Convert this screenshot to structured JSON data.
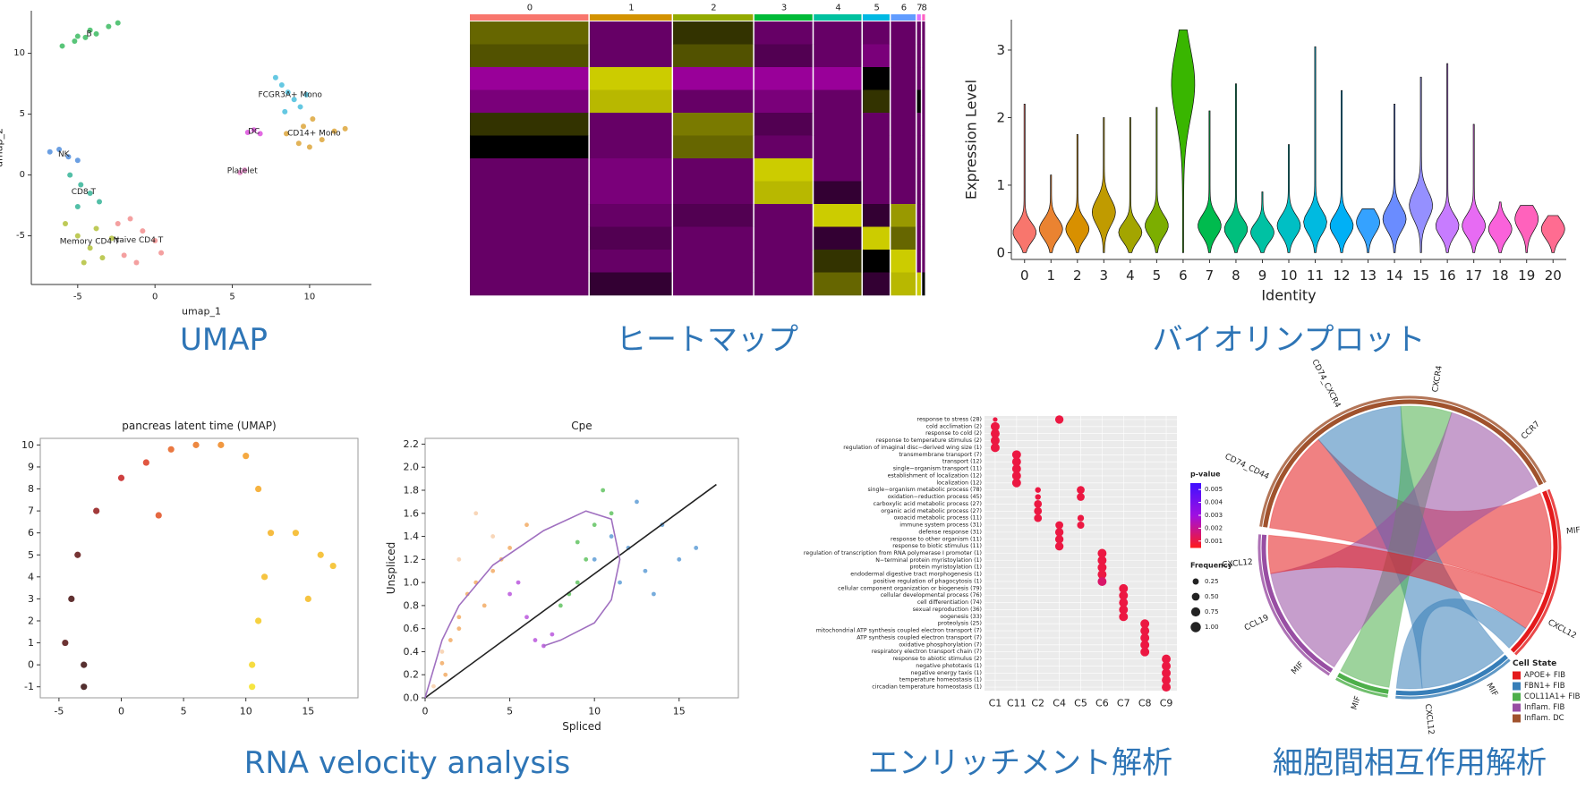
{
  "captions": [
    "UMAP",
    "ヒートマップ",
    "バイオリンプロット",
    "RNA velocity analysis",
    "エンリッチメント解析",
    "細胞間相互作用解析"
  ],
  "chart_data": [
    {
      "type": "scatter",
      "xlabel": "umap_1",
      "ylabel": "umap_2",
      "xlim": [
        -8,
        14
      ],
      "ylim": [
        -9,
        13.5
      ],
      "xticks": [
        -5,
        0,
        5,
        10
      ],
      "yticks": [
        -5,
        0,
        5,
        10
      ],
      "labels_on_points": true,
      "series": [
        {
          "name": "B",
          "color": "#22b14c",
          "x": [
            -6,
            -5.2,
            -4.5,
            -3.8,
            -3,
            -2.4,
            -4.2,
            -5
          ],
          "y": [
            10.6,
            11,
            11.3,
            11.6,
            12.2,
            12.5,
            11.9,
            11.4
          ]
        },
        {
          "name": "FCGR3A+ Mono",
          "color": "#31b5d8",
          "x": [
            7.8,
            8.2,
            8.6,
            9,
            9.4,
            8.4,
            9.8
          ],
          "y": [
            8,
            7.4,
            6.8,
            6.2,
            5.6,
            5.2,
            6.6
          ]
        },
        {
          "name": "DC",
          "color": "#d838d8",
          "x": [
            6,
            6.4,
            6.8
          ],
          "y": [
            3.5,
            3.7,
            3.4
          ]
        },
        {
          "name": "CD14+ Mono",
          "color": "#d89a20",
          "x": [
            8.5,
            9.3,
            10,
            10.8,
            11.6,
            12.3,
            10.2,
            9.6
          ],
          "y": [
            3.4,
            2.6,
            2.3,
            2.9,
            3.6,
            3.8,
            4.6,
            4
          ]
        },
        {
          "name": "Platelet",
          "color": "#e377c2",
          "x": [
            5.5,
            5.8
          ],
          "y": [
            0.2,
            0.4
          ]
        },
        {
          "name": "NK",
          "color": "#3a7fd8",
          "x": [
            -6.8,
            -6.2,
            -5.6,
            -5
          ],
          "y": [
            1.9,
            2.1,
            1.5,
            1.2
          ]
        },
        {
          "name": "CD8 T",
          "color": "#1aaa8a",
          "x": [
            -5.5,
            -4.8,
            -4.2,
            -3.6,
            -5
          ],
          "y": [
            0,
            -0.8,
            -1.5,
            -2.2,
            -2.6
          ]
        },
        {
          "name": "Memory CD4 T",
          "color": "#a8b820",
          "x": [
            -5.8,
            -5,
            -4.2,
            -3.4,
            -2.8,
            -4.6,
            -3.8
          ],
          "y": [
            -4,
            -5,
            -6,
            -6.8,
            -5.2,
            -7.2,
            -4.4
          ]
        },
        {
          "name": "Naive CD4 T",
          "color": "#f08080",
          "x": [
            -2.4,
            -1.6,
            -0.8,
            0,
            0.4,
            -1.2,
            -2
          ],
          "y": [
            -4,
            -3.6,
            -4.6,
            -5.4,
            -6.4,
            -7.2,
            -6.6
          ]
        }
      ]
    },
    {
      "type": "heatmap",
      "categories": [
        "0",
        "1",
        "2",
        "3",
        "4",
        "5",
        "6",
        "7",
        "8"
      ],
      "sizes": [
        115,
        80,
        78,
        57,
        47,
        27,
        25,
        5,
        4
      ],
      "colors": [
        "#f8766d",
        "#d39200",
        "#93aa00",
        "#00ba38",
        "#00c19f",
        "#00b9e3",
        "#619cff",
        "#db72fb",
        "#ff61c3"
      ],
      "colorscale": [
        "#ff00ff",
        "#000000",
        "#ffff00"
      ],
      "zlim": [
        -2.5,
        2.5
      ],
      "values": [
        [
          1,
          -1,
          0.5,
          -1,
          -1,
          -1,
          -1,
          -1,
          -1
        ],
        [
          0.8,
          -1,
          0.8,
          -0.8,
          -1,
          -1.2,
          -1,
          -1,
          -1
        ],
        [
          -1.5,
          2,
          -1.5,
          -1.5,
          -1.5,
          0,
          -1,
          -1,
          -1
        ],
        [
          -1.2,
          1.8,
          -1,
          -1.2,
          -1,
          0.5,
          -1,
          0,
          -1
        ],
        [
          0.5,
          -1,
          1.2,
          -0.8,
          -1,
          -1,
          -1,
          -1,
          -1
        ],
        [
          0,
          -1,
          1,
          -1,
          -1,
          -1,
          -1,
          -1,
          -1
        ],
        [
          -1,
          -1.2,
          -1,
          2,
          -1,
          -1,
          -1,
          -1,
          -1
        ],
        [
          -1,
          -1.2,
          -1,
          1.8,
          -0.5,
          -1,
          -1,
          -1,
          -1
        ],
        [
          -1,
          -1,
          -0.8,
          -1,
          2,
          -0.5,
          1.5,
          -1,
          -1
        ],
        [
          -1,
          -0.8,
          -1,
          -1,
          -0.5,
          2,
          1,
          -1,
          -1
        ],
        [
          -1,
          -1,
          -1,
          -1,
          0.5,
          0,
          2,
          -1,
          -1
        ],
        [
          -1,
          -0.5,
          -1,
          -1,
          1,
          -0.5,
          1.8,
          2,
          0
        ]
      ]
    },
    {
      "type": "violin",
      "xlabel": "Identity",
      "ylabel": "Expression Level",
      "ylim": [
        -0.1,
        3.45
      ],
      "yticks": [
        0,
        1,
        2,
        3
      ],
      "categories": [
        "0",
        "1",
        "2",
        "3",
        "4",
        "5",
        "6",
        "7",
        "8",
        "9",
        "10",
        "11",
        "12",
        "13",
        "14",
        "15",
        "16",
        "17",
        "18",
        "19",
        "20"
      ],
      "values": [
        0.3,
        0.35,
        0.35,
        0.6,
        0.3,
        0.4,
        2.5,
        0.4,
        0.35,
        0.3,
        0.4,
        0.45,
        0.4,
        0.45,
        0.5,
        0.7,
        0.4,
        0.4,
        0.35,
        0.5,
        0.35
      ],
      "max": [
        2.2,
        1.15,
        1.75,
        2.0,
        2.0,
        2.15,
        3.3,
        2.1,
        2.5,
        0.9,
        1.6,
        3.05,
        2.4,
        0.65,
        2.2,
        2.6,
        2.8,
        1.9,
        0.75,
        0.7,
        0.55
      ],
      "colors": [
        "#f8766d",
        "#ea8331",
        "#d89000",
        "#c09b00",
        "#a3a500",
        "#7cae00",
        "#39b600",
        "#00bb4e",
        "#00bf7d",
        "#00c1a3",
        "#00bfc4",
        "#00bae0",
        "#00b0f6",
        "#35a2ff",
        "#6a8cff",
        "#9590ff",
        "#c77cff",
        "#e76bf3",
        "#fa62db",
        "#ff62bc",
        "#ff6c91"
      ]
    },
    {
      "type": "scatter",
      "title": "pancreas latent time (UMAP)",
      "frame": true,
      "xlim": [
        -6.5,
        19
      ],
      "ylim": [
        -1.5,
        10.3
      ],
      "xticks": [
        -5,
        0,
        5,
        10,
        15
      ],
      "yticks": [
        -1,
        0,
        1,
        2,
        3,
        4,
        5,
        6,
        7,
        8,
        9,
        10
      ],
      "colormap": [
        "#2b0a0a",
        "#d62020",
        "#f5a020",
        "#f5e020"
      ],
      "clim": [
        0,
        1
      ],
      "x": [
        -4,
        -3.5,
        -4.5,
        -2,
        0,
        2,
        4,
        6,
        8,
        10,
        11,
        12,
        11.5,
        11,
        10.5,
        10.5,
        14,
        16,
        17,
        15,
        -3,
        -3,
        3
      ],
      "y": [
        3,
        5,
        1,
        7,
        8.5,
        9.2,
        9.8,
        10,
        10,
        9.5,
        8,
        6,
        4,
        2,
        0,
        -1,
        6,
        5,
        4.5,
        3,
        -1,
        0,
        6.8
      ],
      "values": [
        0.05,
        0.1,
        0.08,
        0.2,
        0.3,
        0.4,
        0.5,
        0.55,
        0.6,
        0.65,
        0.7,
        0.75,
        0.8,
        0.88,
        0.95,
        1,
        0.78,
        0.8,
        0.82,
        0.8,
        0.02,
        0.03,
        0.45
      ]
    },
    {
      "type": "scatter",
      "title": "Cpe",
      "xlabel": "Spliced",
      "ylabel": "Unspliced",
      "frame": true,
      "xlim": [
        0,
        18.5
      ],
      "ylim": [
        0,
        2.25
      ],
      "xticks": [
        0,
        5,
        10,
        15
      ],
      "yticks": [
        {
          "value": 0,
          "label": "0.0"
        },
        0.2,
        0.4,
        0.6,
        0.8,
        {
          "value": 1,
          "label": "1.0"
        },
        1.2,
        1.4,
        1.6,
        1.8,
        {
          "value": 2,
          "label": "2.0"
        },
        2.2
      ],
      "series": [
        {
          "color": "#f0a050",
          "x": [
            1,
            1.5,
            2,
            2.5,
            3,
            4,
            5,
            6,
            4.5,
            3.5,
            2,
            1.2
          ],
          "y": [
            0.3,
            0.5,
            0.7,
            0.9,
            1,
            1.1,
            1.3,
            1.5,
            1.2,
            0.8,
            0.6,
            0.2
          ]
        },
        {
          "color": "#4cbb4c",
          "x": [
            8,
            9,
            9.5,
            10,
            8.5,
            10.5,
            11,
            9
          ],
          "y": [
            0.8,
            1,
            1.2,
            1.5,
            0.9,
            1.8,
            1.6,
            1.35
          ]
        },
        {
          "color": "#b040d8",
          "x": [
            5,
            6,
            6.5,
            7,
            7.5,
            5.5
          ],
          "y": [
            0.9,
            0.7,
            0.5,
            0.45,
            0.55,
            1.0
          ]
        },
        {
          "color": "#4a90d0",
          "x": [
            10,
            11,
            12,
            13,
            14,
            15,
            12.5,
            11.5,
            13.5,
            16
          ],
          "y": [
            1.2,
            1.4,
            1.3,
            1.1,
            1.5,
            1.2,
            1.7,
            1,
            0.9,
            1.3
          ]
        },
        {
          "color": "#f5c8a0",
          "x": [
            0.5,
            1,
            2,
            3,
            4
          ],
          "y": [
            0.1,
            0.4,
            1.2,
            1.6,
            1.4
          ]
        }
      ],
      "lines": [
        {
          "color": "#222222",
          "x": [
            0,
            17.2
          ],
          "y": [
            0,
            1.85
          ]
        },
        {
          "color": "#a070c0",
          "x": [
            0,
            1,
            2,
            4,
            7,
            9.5,
            11,
            11.5,
            11,
            10,
            8,
            7
          ],
          "y": [
            0,
            0.5,
            0.8,
            1.15,
            1.45,
            1.62,
            1.55,
            1.2,
            0.85,
            0.65,
            0.5,
            0.45
          ]
        }
      ]
    },
    {
      "type": "dotplot",
      "categories": [
        "C1",
        "C11",
        "C2",
        "C4",
        "C5",
        "C6",
        "C7",
        "C8",
        "C9"
      ],
      "terms": [
        "response to stress (28)",
        "cold acclimation (2)",
        "response to cold (2)",
        "response to temperature stimulus (2)",
        "regulation of imaginal disc−derived wing size (1)",
        "transmembrane transport (7)",
        "transport (12)",
        "single−organism transport (11)",
        "establishment of localization (12)",
        "localization (12)",
        "single−organism metabolic process (78)",
        "oxidation−reduction process (45)",
        "carboxylic acid metabolic process (27)",
        "organic acid metabolic process (27)",
        "oxoacid metabolic process (11)",
        "immune system process (31)",
        "defense response (31)",
        "response to other organism (11)",
        "response to biotic stimulus (11)",
        "regulation of transcription from RNA polymerase I promoter (1)",
        "N−terminal protein myristoylation (1)",
        "protein myristoylation (1)",
        "endodermal digestive tract morphogenesis (1)",
        "positive regulation of phagocytosis (1)",
        "cellular component organization or biogenesis (79)",
        "cellular developmental process (76)",
        "cell differentiation (74)",
        "sexual reproduction (36)",
        "oogenesis (33)",
        "proteolysis (25)",
        "mitochondrial ATP synthesis coupled electron transport (7)",
        "ATP synthesis coupled electron transport (7)",
        "oxidative phosphorylation (7)",
        "respiratory electron transport chain (7)",
        "response to abiotic stimulus (2)",
        "negative phototaxis (1)",
        "negative energy taxis (1)",
        "temperature homeostasis (1)",
        "circadian temperature homeostasis (1)"
      ],
      "x": [
        0,
        3,
        0,
        0,
        0,
        0,
        1,
        1,
        1,
        1,
        1,
        2,
        2,
        2,
        2,
        2,
        4,
        4,
        4,
        4,
        3,
        3,
        3,
        3,
        5,
        5,
        5,
        5,
        5,
        6,
        6,
        6,
        6,
        6,
        7,
        7,
        7,
        7,
        7,
        8,
        8,
        8,
        8,
        8
      ],
      "y": [
        0,
        0,
        1,
        2,
        3,
        4,
        5,
        6,
        7,
        8,
        9,
        10,
        11,
        12,
        13,
        14,
        10,
        11,
        14,
        15,
        15,
        16,
        17,
        18,
        19,
        20,
        21,
        22,
        23,
        24,
        25,
        26,
        27,
        28,
        29,
        30,
        31,
        32,
        33,
        34,
        35,
        36,
        37,
        38
      ],
      "pvalue": [
        0.001,
        0.001,
        0.001,
        0.001,
        0.001,
        0.001,
        0.001,
        0.001,
        0.001,
        0.001,
        0.001,
        0.001,
        0.001,
        0.001,
        0.001,
        0.001,
        0.001,
        0.001,
        0.001,
        0.001,
        0.001,
        0.001,
        0.001,
        0.001,
        0.001,
        0.001,
        0.001,
        0.001,
        0.0015,
        0.001,
        0.001,
        0.001,
        0.001,
        0.001,
        0.001,
        0.001,
        0.001,
        0.001,
        0.001,
        0.001,
        0.001,
        0.001,
        0.001,
        0.001
      ],
      "frequency": [
        0.1,
        0.6,
        0.7,
        0.7,
        0.7,
        0.7,
        0.7,
        0.7,
        0.7,
        0.7,
        0.7,
        0.2,
        0.2,
        0.5,
        0.5,
        0.5,
        0.5,
        0.5,
        0.3,
        0.4,
        0.5,
        0.6,
        0.6,
        0.6,
        0.7,
        0.7,
        0.7,
        0.7,
        0.7,
        0.7,
        0.7,
        0.7,
        0.7,
        0.7,
        0.7,
        0.7,
        0.7,
        0.7,
        0.7,
        0.7,
        0.7,
        0.7,
        0.7,
        0.7
      ],
      "colorscale": [
        "#ff1a1a",
        "#a010e0",
        "#4010ff"
      ],
      "plim": [
        0.0005,
        0.0055
      ],
      "pvalue_title": "p-value",
      "pvalue_ticks": [
        0.005,
        0.004,
        0.003,
        0.002,
        0.001
      ],
      "frequency_title": "Frequency",
      "frequency_ticks": [
        0.25,
        {
          "value": 0.5,
          "label": "0.50"
        },
        0.75,
        {
          "value": 1,
          "label": "1.00"
        }
      ]
    },
    {
      "type": "chord",
      "legend_title": "Cell State",
      "series": [
        {
          "name": "Inflam. DC",
          "color": "#a0522d",
          "labels": [
            "CD74_CD44",
            "CD74_CXCR4",
            "CXCR4",
            "CCR7"
          ]
        },
        {
          "name": "APOE+ FIB",
          "color": "#e41a1c",
          "labels": [
            "MIF",
            "CXCL12"
          ]
        },
        {
          "name": "FBN1+ FIB",
          "color": "#377eb8",
          "labels": [
            "MIF",
            "CXCL12"
          ]
        },
        {
          "name": "COL11A1+ FIB",
          "color": "#4daf4a",
          "labels": [
            "MIF"
          ]
        },
        {
          "name": "Inflam. FIB",
          "color": "#984ea3",
          "labels": [
            "MIF",
            "CCL19",
            "CXCL12"
          ]
        }
      ],
      "legend_order": [
        1,
        2,
        3,
        4,
        0
      ],
      "links": {
        "source": [
          1,
          2,
          3,
          4,
          1,
          2
        ],
        "target": [
          0,
          0,
          0,
          0,
          4,
          1
        ],
        "values": [
          8,
          7,
          4,
          9,
          3,
          2
        ]
      }
    }
  ]
}
